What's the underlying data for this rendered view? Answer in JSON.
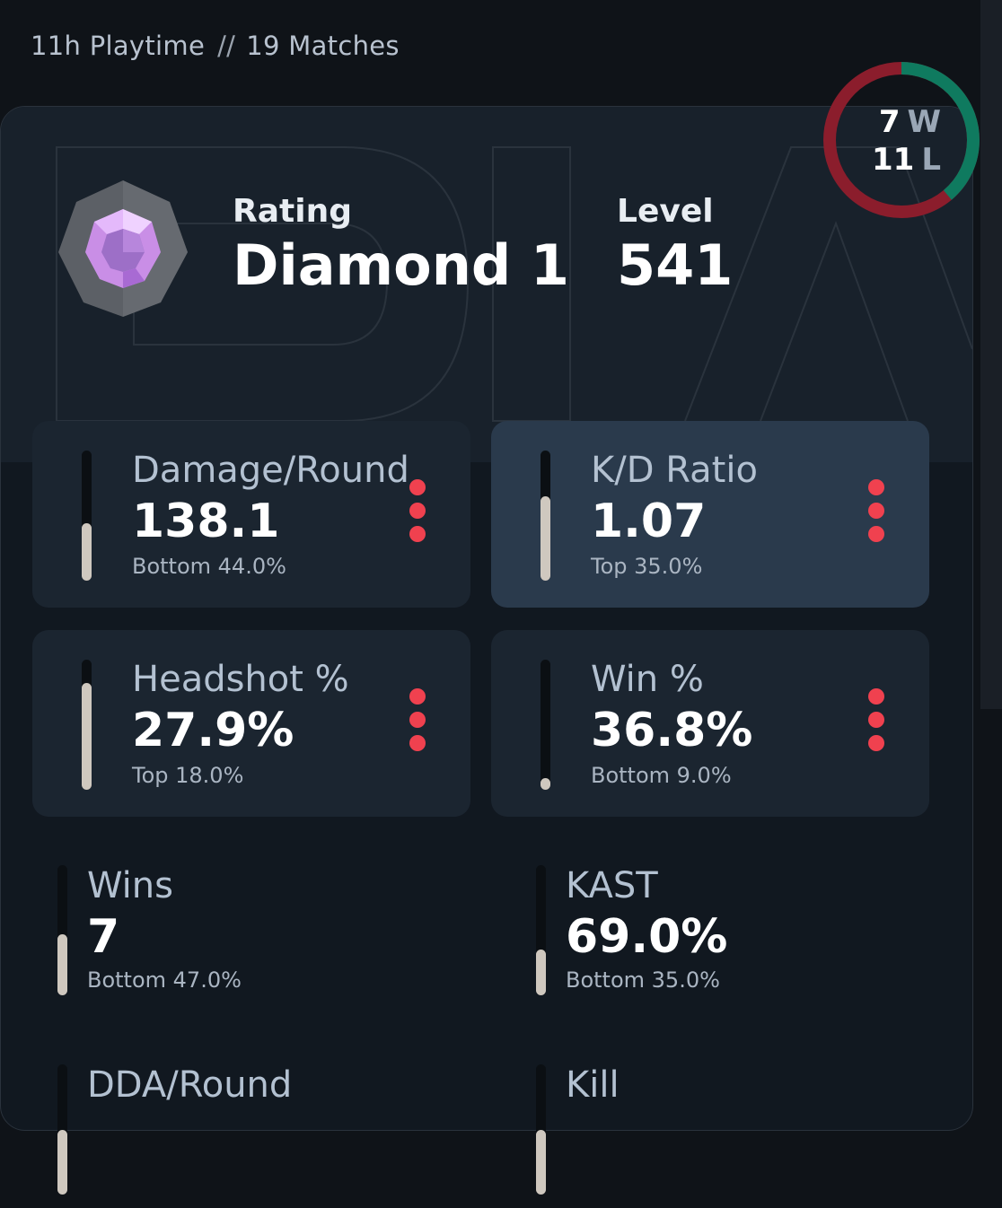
{
  "header": {
    "playtime": "11h Playtime",
    "separator": "//",
    "matches": "19 Matches"
  },
  "rating": {
    "label": "Rating",
    "value": "Diamond 1",
    "badge_icon": "diamond-rank-icon"
  },
  "level": {
    "label": "Level",
    "value": "541"
  },
  "record": {
    "wins": "7",
    "wins_letter": "W",
    "losses": "11",
    "losses_letter": "L",
    "win_color": "#0f7a5f",
    "loss_color": "#8b1d2c"
  },
  "stats": [
    {
      "name": "Damage/Round",
      "value": "138.1",
      "rank": "Bottom 44.0%",
      "percentile": 0.44,
      "highlighted": false
    },
    {
      "name": "K/D Ratio",
      "value": "1.07",
      "rank": "Top 35.0%",
      "percentile": 0.65,
      "highlighted": true
    },
    {
      "name": "Headshot %",
      "value": "27.9%",
      "rank": "Top 18.0%",
      "percentile": 0.82,
      "highlighted": false
    },
    {
      "name": "Win %",
      "value": "36.8%",
      "rank": "Bottom 9.0%",
      "percentile": 0.09,
      "highlighted": false
    }
  ],
  "plain_stats": [
    {
      "name": "Wins",
      "value": "7",
      "rank": "Bottom 47.0%",
      "percentile": 0.47
    },
    {
      "name": "KAST",
      "value": "69.0%",
      "rank": "Bottom 35.0%",
      "percentile": 0.35
    },
    {
      "name": "DDA/Round",
      "value": "",
      "rank": "",
      "percentile": 0.5
    },
    {
      "name": "Kill",
      "value": "",
      "rank": "",
      "percentile": 0.5
    }
  ],
  "colors": {
    "background": "#0f1318",
    "card": "#1b2530",
    "card_highlight": "#2a3a4c",
    "accent_dots": "#f0414f",
    "bar_fill": "#cfc8bf"
  },
  "icons": {
    "more": "more-vertical-icon"
  }
}
